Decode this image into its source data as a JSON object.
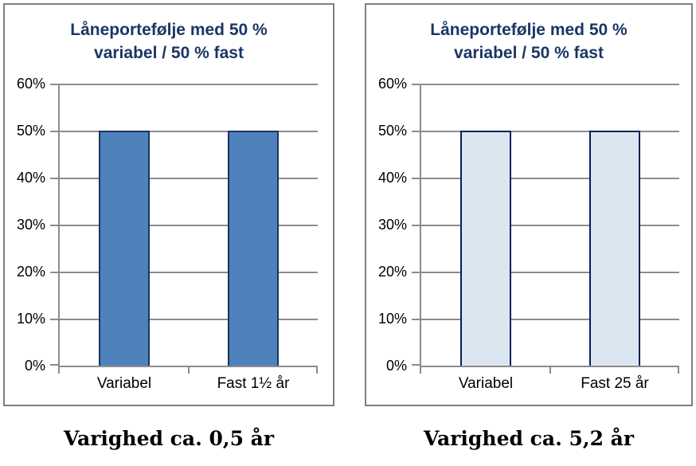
{
  "chart_data": [
    {
      "type": "bar",
      "title": "Låneportefølje med 50 % variabel / 50 % fast",
      "title_lines": [
        "Låneportefølje med 50 %",
        "variabel / 50 % fast"
      ],
      "categories": [
        "Variabel",
        "Fast 1½ år"
      ],
      "values": [
        50,
        50
      ],
      "unit": "%",
      "ylim": [
        0,
        60
      ],
      "yticks": [
        60,
        50,
        40,
        30,
        20,
        10,
        0
      ],
      "ytick_labels": [
        "60%",
        "50%",
        "40%",
        "30%",
        "20%",
        "10%",
        "0%"
      ],
      "grid": true,
      "legend": false,
      "bar_fill": "#4F81BD",
      "bar_border": "#17365D",
      "caption": "Varighed ca. 0,5 år"
    },
    {
      "type": "bar",
      "title": "Låneportefølje med 50 % variabel / 50 % fast",
      "title_lines": [
        "Låneportefølje med 50 %",
        "variabel / 50 % fast"
      ],
      "categories": [
        "Variabel",
        "Fast 25 år"
      ],
      "values": [
        50,
        50
      ],
      "unit": "%",
      "ylim": [
        0,
        60
      ],
      "yticks": [
        60,
        50,
        40,
        30,
        20,
        10,
        0
      ],
      "ytick_labels": [
        "60%",
        "50%",
        "40%",
        "30%",
        "20%",
        "10%",
        "0%"
      ],
      "grid": true,
      "legend": false,
      "bar_fill": "#DCE6F1",
      "bar_border": "#002060",
      "caption": "Varighed ca. 5,2 år"
    }
  ],
  "colors": {
    "title_text": "#1B3665",
    "gridline": "#8C8C8C",
    "frame_border": "#808080",
    "axis_text": "#000000",
    "caption_text": "#000000",
    "background": "#FFFFFF"
  }
}
